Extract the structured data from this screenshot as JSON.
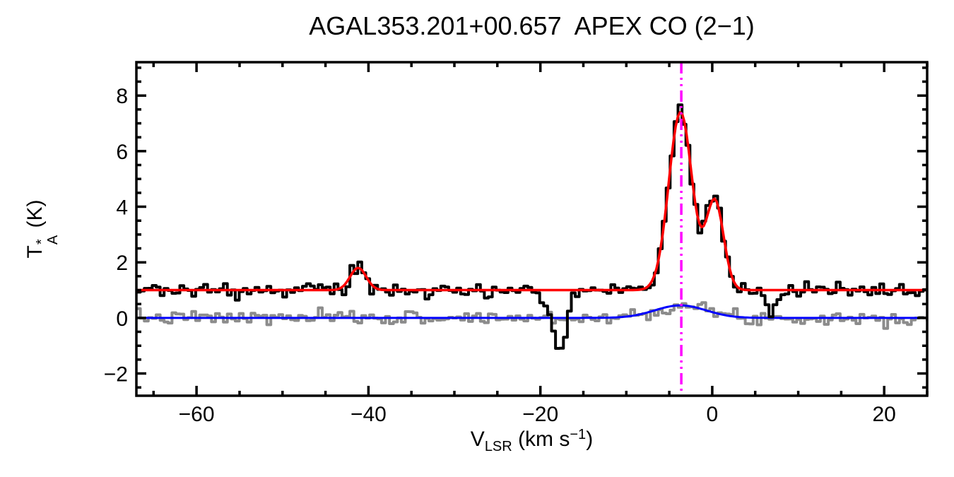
{
  "chart_data": {
    "type": "line",
    "title": "AGAL353.201+00.657  APEX CO (2−1)",
    "xlabel": "V_LSR (km s−1)",
    "ylabel": "T_A* (K)",
    "xlabel_parts": {
      "main": "V",
      "sub": "LSR",
      "mid": " (km s",
      "sup": "−1",
      "end": ")"
    },
    "ylabel_parts": {
      "main": "T",
      "sup": "*",
      "sub": "A",
      "end": " (K)"
    },
    "xlim": [
      -67,
      25
    ],
    "ylim": [
      -2.8,
      9.2
    ],
    "x_ticks": [
      -60,
      -40,
      -20,
      0,
      20
    ],
    "x_minor_step": 5,
    "y_ticks": [
      -2,
      0,
      2,
      4,
      6,
      8
    ],
    "y_minor_step": 0.5,
    "grid": false,
    "legend": false,
    "channel_width": 0.46,
    "vline": {
      "x": -3.6,
      "color": "#ff00ff",
      "style": "dash-dot-dot"
    },
    "series": [
      {
        "name": "observed-spectrum-histogram",
        "color": "#000000",
        "style": "histogram",
        "line_width": 4,
        "baseline": 1.0,
        "noise_sigma": 0.13,
        "seed": 20,
        "components": [
          {
            "center": -41.2,
            "amp": 0.85,
            "fwhm": 2.0
          },
          {
            "center": -3.7,
            "amp": 6.4,
            "fwhm": 3.2
          },
          {
            "center": 0.3,
            "amp": 3.2,
            "fwhm": 2.4
          },
          {
            "center": -17.6,
            "amp": -2.0,
            "fwhm": 1.6
          },
          {
            "center": -19.0,
            "amp": -0.6,
            "fwhm": 2.4
          },
          {
            "center": 6.9,
            "amp": -0.75,
            "fwhm": 1.6
          }
        ]
      },
      {
        "name": "gaussian-fit",
        "color": "#ff0000",
        "style": "line",
        "line_width": 3.5,
        "baseline": 1.0,
        "noise_sigma": 0,
        "components": [
          {
            "center": -41.2,
            "amp": 0.8,
            "fwhm": 2.2
          },
          {
            "center": -3.7,
            "amp": 6.4,
            "fwhm": 3.2
          },
          {
            "center": 0.3,
            "amp": 3.2,
            "fwhm": 2.4
          }
        ]
      },
      {
        "name": "residual-spectrum-histogram",
        "color": "#8c8c8c",
        "style": "histogram",
        "line_width": 4,
        "baseline": 0.0,
        "noise_sigma": 0.12,
        "seed": 7,
        "components": [
          {
            "center": -3.7,
            "amp": 0.45,
            "fwhm": 7.0
          }
        ]
      },
      {
        "name": "residual-fit",
        "color": "#0000ff",
        "style": "line",
        "line_width": 3,
        "baseline": 0.0,
        "noise_sigma": 0,
        "components": [
          {
            "center": -3.7,
            "amp": 0.45,
            "fwhm": 7.0
          }
        ]
      }
    ],
    "draw_order": [
      "residual-spectrum-histogram",
      "residual-fit",
      "observed-spectrum-histogram",
      "gaussian-fit"
    ]
  }
}
